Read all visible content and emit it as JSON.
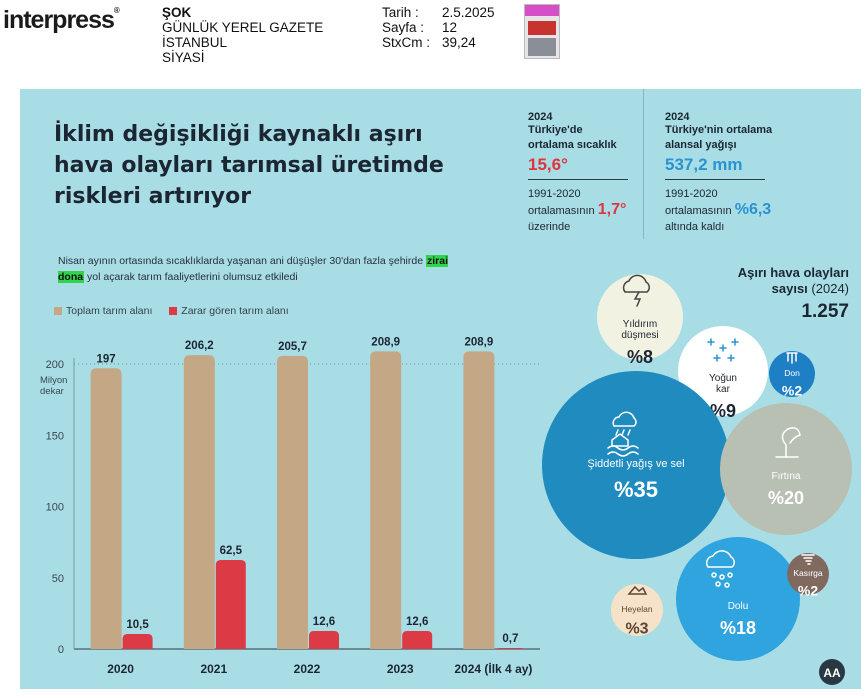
{
  "clipping": {
    "logo": "interpress",
    "publication": "ŞOK",
    "type": "GÜNLÜK YEREL GAZETE",
    "city": "İSTANBUL",
    "section": "SİYASİ",
    "date_label": "Tarih :",
    "date": "2.5.2025",
    "page_label": "Sayfa :",
    "page": "12",
    "stxcm_label": "StxCm :",
    "stxcm": "39,24"
  },
  "headline": "İklim değişikliği kaynaklı aşırı hava olayları tarımsal üretimde riskleri artırıyor",
  "subtitle": {
    "before": "Nisan ayının ortasında sıcaklıklarda yaşanan ani düşüşler 30'dan fazla şehirde ",
    "highlight": "zirai dona",
    "after": " yol açarak tarım faaliyetlerini olumsuz etkiledi"
  },
  "stats": {
    "temp": {
      "year": "2024",
      "label1": "Türkiye'de",
      "label2": "ortalama sıcaklık",
      "value": "15,6°",
      "note1": "1991-2020",
      "note2": "ortalamasının",
      "delta": "1,7°",
      "note3": "üzerinde"
    },
    "rain": {
      "year": "2024",
      "label1": "Türkiye'nin ortalama",
      "label2": "alansal yağışı",
      "value": "537,2 mm",
      "note1": "1991-2020",
      "note2": "ortalamasının",
      "delta": "%6,3",
      "note3": "altında kaldı"
    }
  },
  "events": {
    "title1": "Aşırı hava olayları",
    "title2": "sayısı",
    "title_paren": "(2024)",
    "total": "1.257"
  },
  "colors": {
    "total": "#c4a886",
    "damaged": "#dc3a45",
    "bg": "#a9dde6",
    "accent_red": "#e0353f",
    "accent_blue": "#2a93d0"
  },
  "chart_data": [
    {
      "type": "bar",
      "ylabel": "Milyon dekar",
      "ylim": [
        0,
        200
      ],
      "yticks": [
        0,
        50,
        100,
        150,
        200
      ],
      "categories": [
        "2020",
        "2021",
        "2022",
        "2023",
        "2024 (İlk 4 ay)"
      ],
      "series": [
        {
          "name": "Toplam tarım alanı",
          "values": [
            197,
            206.2,
            205.7,
            208.9,
            208.9
          ],
          "labels": [
            "197",
            "206,2",
            "205,7",
            "208,9",
            "208,9"
          ],
          "color": "#c4a886"
        },
        {
          "name": "Zarar gören tarım alanı",
          "values": [
            10.5,
            62.5,
            12.6,
            12.6,
            0.7
          ],
          "labels": [
            "10,5",
            "62,5",
            "12,6",
            "12,6",
            "0,7"
          ],
          "color": "#dc3a45"
        }
      ],
      "grid": "dotted at 200",
      "legend": "top-left"
    },
    {
      "type": "bubble",
      "categories": [
        "Yıldırım düşmesi",
        "Yoğun kar",
        "Don",
        "Şiddetli yağış ve sel",
        "Fırtına",
        "Heyelan",
        "Dolu",
        "Kasırga"
      ],
      "values": [
        8,
        9,
        2,
        35,
        20,
        3,
        18,
        2
      ],
      "labels": [
        "%8",
        "%9",
        "%2",
        "%35",
        "%20",
        "%3",
        "%18",
        "%2"
      ],
      "colors": [
        "#f2f2e2",
        "#ffffff",
        "#1f7fc4",
        "#1f8bbf",
        "#b8c0b3",
        "#f6e2c8",
        "#2fa4de",
        "#806a60"
      ],
      "icons": [
        "lightning-cloud-icon",
        "snowflake-icon",
        "frost-icon",
        "flood-icon",
        "tree-wind-icon",
        "landslide-icon",
        "hail-icon",
        "tornado-icon"
      ]
    }
  ],
  "watermark": "AA"
}
